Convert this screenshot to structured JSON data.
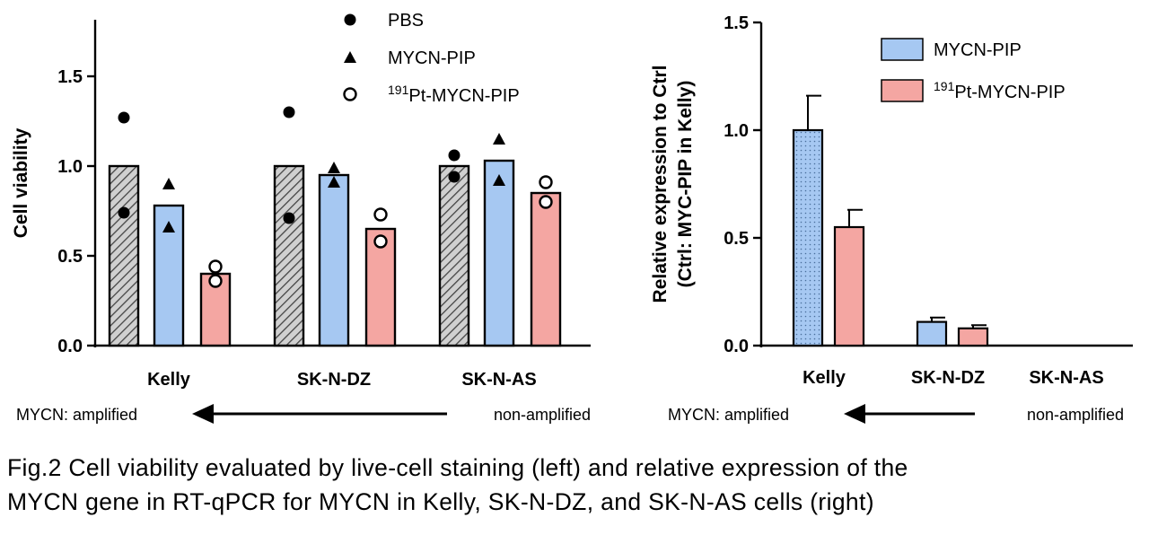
{
  "colors": {
    "pbs_hatch": "#d0d0d0",
    "mycn_pip": "#a6c8f2",
    "pt_mycn_pip": "#f4a6a2",
    "axis": "#000000"
  },
  "chart_data": [
    {
      "type": "bar",
      "panel": "left",
      "ylabel": "Cell viability",
      "xlabel": "",
      "ylim": [
        0,
        1.75
      ],
      "yticks": [
        "0.0",
        "0.5",
        "1.0",
        "1.5"
      ],
      "ytick_values": [
        0,
        0.5,
        1.0,
        1.5
      ],
      "categories": [
        "Kelly",
        "SK-N-DZ",
        "SK-N-AS"
      ],
      "legend_placement": "top-center",
      "series": [
        {
          "name": "PBS",
          "key": "pbs",
          "marker": "filled-circle",
          "values": [
            1.0,
            1.0,
            1.0
          ],
          "points": [
            [
              1.27,
              0.74
            ],
            [
              1.3,
              0.71
            ],
            [
              1.06,
              0.94
            ]
          ]
        },
        {
          "name": "MYCN-PIP",
          "key": "mycn",
          "marker": "triangle",
          "values": [
            0.78,
            0.95,
            1.03
          ],
          "points": [
            [
              0.9,
              0.66
            ],
            [
              0.99,
              0.91
            ],
            [
              1.15,
              0.92
            ]
          ]
        },
        {
          "name": "191Pt-MYCN-PIP",
          "sup": "191",
          "label": "Pt-MYCN-PIP",
          "key": "pt",
          "marker": "open-circle",
          "values": [
            0.4,
            0.65,
            0.85
          ],
          "points": [
            [
              0.44,
              0.36
            ],
            [
              0.73,
              0.58
            ],
            [
              0.91,
              0.8
            ]
          ]
        }
      ],
      "arrow": {
        "left_label": "MYCN: amplified",
        "right_label": "non-amplified"
      }
    },
    {
      "type": "bar",
      "panel": "right",
      "ylabel_line1": "Relative expression to Ctrl",
      "ylabel_line2": "(Ctrl: MYC-PIP in Kelly)",
      "xlabel": "",
      "ylim": [
        0,
        1.5
      ],
      "yticks": [
        "0.0",
        "0.5",
        "1.0",
        "1.5"
      ],
      "ytick_values": [
        0,
        0.5,
        1.0,
        1.5
      ],
      "categories": [
        "Kelly",
        "SK-N-DZ",
        "SK-N-AS"
      ],
      "legend_placement": "top-right",
      "series": [
        {
          "name": "MYCN-PIP",
          "key": "mycn",
          "values": [
            1.0,
            0.11,
            0
          ],
          "errors": [
            0.16,
            0.02,
            0
          ]
        },
        {
          "name": "191Pt-MYCN-PIP",
          "sup": "191",
          "label": "Pt-MYCN-PIP",
          "key": "pt",
          "values": [
            0.55,
            0.08,
            0
          ],
          "errors": [
            0.08,
            0.015,
            0
          ]
        }
      ],
      "arrow": {
        "left_label": "MYCN: amplified",
        "right_label": "non-amplified"
      }
    }
  ],
  "caption": {
    "line1": "Fig.2 Cell viability evaluated by live-cell staining (left) and relative expression of the",
    "line2": "MYCN gene in RT-qPCR for MYCN in Kelly, SK-N-DZ, and SK-N-AS cells (right)"
  }
}
